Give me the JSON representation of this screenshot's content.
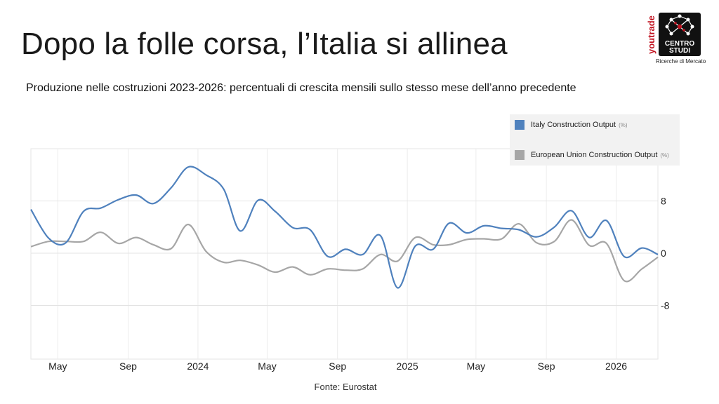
{
  "slide": {
    "title": "Dopo la folle corsa, l’Italia si allinea",
    "subtitle": "Produzione nelle costruzioni 2023-2026: percentuali di crescita mensili sullo stesso mese dell’anno precedente",
    "source": "Fonte: Eurostat"
  },
  "logo": {
    "brand_vertical": "youtrade",
    "line1": "CENTRO",
    "line2": "STUDI",
    "caption": "Ricerche di Mercato"
  },
  "legend": {
    "unit": "(%)",
    "items": [
      {
        "name": "Italy Construction Output",
        "color": "#4f81bd"
      },
      {
        "name": "European Union Construction Output",
        "color": "#a6a6a6"
      }
    ]
  },
  "chart_data": {
    "type": "line",
    "x_ticks": [
      "May",
      "Sep",
      "2024",
      "May",
      "Sep",
      "2025",
      "May",
      "Sep",
      "2026"
    ],
    "y_ticks": [
      8,
      0,
      -8
    ],
    "ylim": [
      -16,
      16
    ],
    "xlim": [
      "2023-04",
      "2026-02"
    ],
    "grid": true,
    "legend_position": "top-right",
    "series": [
      {
        "name": "Italy Construction Output",
        "color": "#4f81bd",
        "points": [
          [
            "2023-03-15",
            6.7
          ],
          [
            "2023-04-15",
            2.3
          ],
          [
            "2023-05-15",
            1.6
          ],
          [
            "2023-06-15",
            6.4
          ],
          [
            "2023-07-15",
            6.9
          ],
          [
            "2023-08-15",
            8.2
          ],
          [
            "2023-09-15",
            8.9
          ],
          [
            "2023-10-15",
            7.6
          ],
          [
            "2023-11-15",
            10.0
          ],
          [
            "2023-12-15",
            13.2
          ],
          [
            "2024-01-15",
            12.0
          ],
          [
            "2024-02-15",
            9.8
          ],
          [
            "2024-03-15",
            3.4
          ],
          [
            "2024-04-15",
            8.1
          ],
          [
            "2024-05-15",
            6.4
          ],
          [
            "2024-06-15",
            3.9
          ],
          [
            "2024-07-15",
            3.6
          ],
          [
            "2024-08-15",
            -0.5
          ],
          [
            "2024-09-15",
            0.6
          ],
          [
            "2024-10-15",
            -0.2
          ],
          [
            "2024-11-15",
            2.7
          ],
          [
            "2024-12-15",
            -5.3
          ],
          [
            "2025-01-15",
            1.1
          ],
          [
            "2025-02-15",
            0.6
          ],
          [
            "2025-03-15",
            4.6
          ],
          [
            "2025-04-15",
            3.1
          ],
          [
            "2025-05-15",
            4.2
          ],
          [
            "2025-06-15",
            3.8
          ],
          [
            "2025-07-15",
            3.6
          ],
          [
            "2025-08-15",
            2.5
          ],
          [
            "2025-09-15",
            4.0
          ],
          [
            "2025-10-15",
            6.5
          ],
          [
            "2025-11-15",
            2.4
          ],
          [
            "2025-12-15",
            5.0
          ],
          [
            "2026-01-15",
            -0.5
          ],
          [
            "2026-02-15",
            0.8
          ],
          [
            "2026-03-15",
            -0.2
          ]
        ]
      },
      {
        "name": "European Union Construction Output",
        "color": "#a6a6a6",
        "points": [
          [
            "2023-03-15",
            1.0
          ],
          [
            "2023-04-15",
            1.8
          ],
          [
            "2023-05-15",
            1.8
          ],
          [
            "2023-06-15",
            1.8
          ],
          [
            "2023-07-15",
            3.2
          ],
          [
            "2023-08-15",
            1.5
          ],
          [
            "2023-09-15",
            2.4
          ],
          [
            "2023-10-15",
            1.3
          ],
          [
            "2023-11-15",
            0.7
          ],
          [
            "2023-12-15",
            4.4
          ],
          [
            "2024-01-15",
            0.3
          ],
          [
            "2024-02-15",
            -1.4
          ],
          [
            "2024-03-15",
            -1.1
          ],
          [
            "2024-04-15",
            -1.8
          ],
          [
            "2024-05-15",
            -2.9
          ],
          [
            "2024-06-15",
            -2.1
          ],
          [
            "2024-07-15",
            -3.3
          ],
          [
            "2024-08-15",
            -2.4
          ],
          [
            "2024-09-15",
            -2.6
          ],
          [
            "2024-10-15",
            -2.4
          ],
          [
            "2024-11-15",
            -0.2
          ],
          [
            "2024-12-15",
            -1.2
          ],
          [
            "2025-01-15",
            2.4
          ],
          [
            "2025-02-15",
            1.3
          ],
          [
            "2025-03-15",
            1.3
          ],
          [
            "2025-04-15",
            2.1
          ],
          [
            "2025-05-15",
            2.2
          ],
          [
            "2025-06-15",
            2.2
          ],
          [
            "2025-07-15",
            4.5
          ],
          [
            "2025-08-15",
            1.6
          ],
          [
            "2025-09-15",
            1.8
          ],
          [
            "2025-10-15",
            5.1
          ],
          [
            "2025-11-15",
            1.2
          ],
          [
            "2025-12-15",
            1.5
          ],
          [
            "2026-01-15",
            -4.2
          ],
          [
            "2026-02-15",
            -2.4
          ],
          [
            "2026-03-15",
            -0.6
          ]
        ]
      }
    ]
  }
}
